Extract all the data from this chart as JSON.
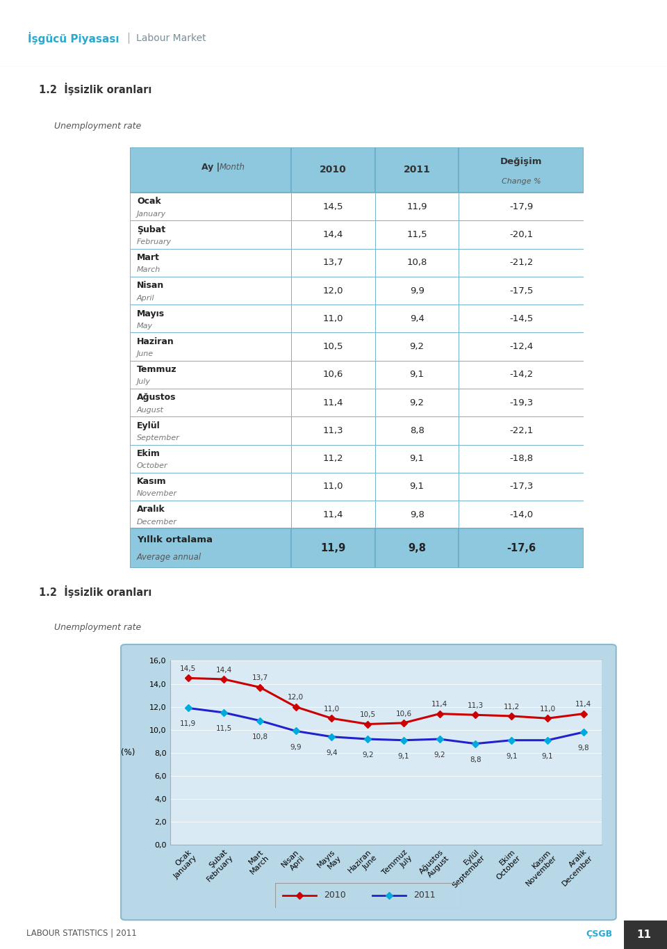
{
  "page_bg": "#ffffff",
  "header_bg": "#d6eef4",
  "header_text_tr": "İşgücü Piyasası",
  "header_text_en": " Labour Market",
  "header_color_tr": "#29a9d0",
  "header_color_en": "#7a8e96",
  "section_title_tr": "1.2  İşsizlik oranları",
  "section_title_en": "Unemployment rate",
  "table_header_bg": "#8ec8de",
  "table_row_bg": "#ffffff",
  "table_footer_bg": "#8ec8de",
  "table_border_color": "#6aadc8",
  "months_tr": [
    "Ocak",
    "Şubat",
    "Mart",
    "Nisan",
    "Mayıs",
    "Haziran",
    "Temmuz",
    "Ağustos",
    "Eylül",
    "Ekim",
    "Kasım",
    "Aralık"
  ],
  "months_en": [
    "January",
    "February",
    "March",
    "April",
    "May",
    "June",
    "July",
    "August",
    "September",
    "October",
    "November",
    "December"
  ],
  "values_2010": [
    14.5,
    14.4,
    13.7,
    12.0,
    11.0,
    10.5,
    10.6,
    11.4,
    11.3,
    11.2,
    11.0,
    11.4
  ],
  "values_2011": [
    11.9,
    11.5,
    10.8,
    9.9,
    9.4,
    9.2,
    9.1,
    9.2,
    8.8,
    9.1,
    9.1,
    9.8
  ],
  "changes": [
    "-17,9",
    "-20,1",
    "-21,2",
    "-17,5",
    "-14,5",
    "-12,4",
    "-14,2",
    "-19,3",
    "-22,1",
    "-18,8",
    "-17,3",
    "-14,0"
  ],
  "avg_2010": "11,9",
  "avg_2011": "9,8",
  "avg_change": "-17,6",
  "footer_tr": "Yıllık ortalama",
  "footer_en": "Average annual",
  "chart_outer_bg": "#b8d8e8",
  "chart_inner_bg": "#daeaf4",
  "chart_plot_bg": "#daeaf4",
  "line_2010_color": "#cc0000",
  "line_2011_color": "#2222cc",
  "marker_2010_color": "#cc0000",
  "marker_2011_color": "#00aadd",
  "ylim": [
    0.0,
    16.0
  ],
  "yticks": [
    0.0,
    2.0,
    4.0,
    6.0,
    8.0,
    10.0,
    12.0,
    14.0,
    16.0
  ],
  "page_number": "11",
  "footer_label": "LABOUR STATISTICS | 2011",
  "csgb_color": "#29a9d0"
}
